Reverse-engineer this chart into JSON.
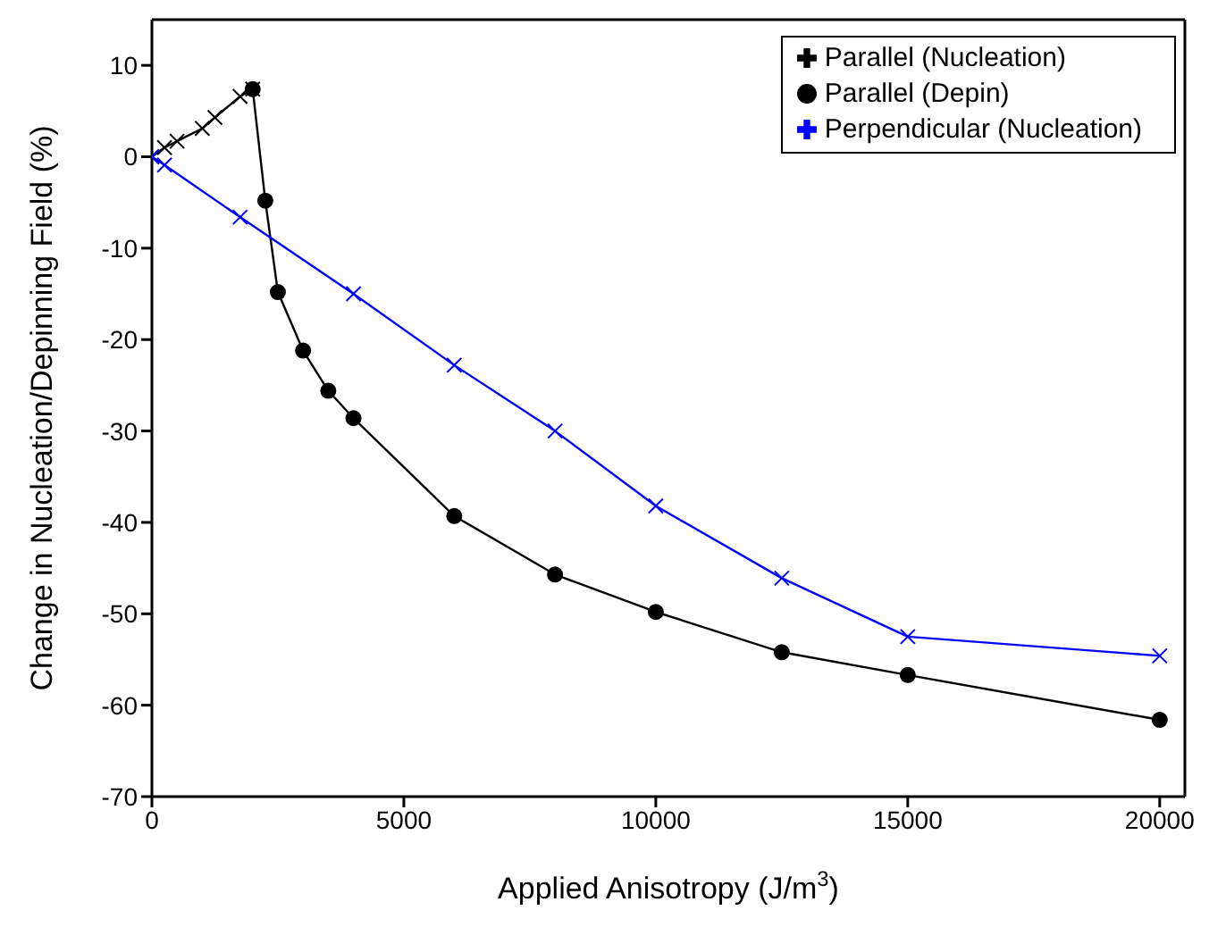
{
  "chart_data": {
    "type": "line",
    "xlabel": "Applied Anisotropy (J/m$^{3}$)",
    "ylabel": "Change in Nucleation/Depinning Field (%)",
    "xlim": [
      0,
      20500
    ],
    "xticks": [
      0,
      5000,
      10000,
      15000,
      20000
    ],
    "ylim": [
      -70,
      15
    ],
    "yticks": [
      -70,
      -60,
      -50,
      -40,
      -30,
      -20,
      -10,
      0,
      10
    ],
    "grid": false,
    "legend": "top right",
    "line_style": "solid",
    "series": [
      {
        "name": "Parallel (Nucleation)",
        "color": "#000000",
        "marker": "cross",
        "x": [
          0,
          250,
          500,
          1000,
          1250,
          1750,
          2000
        ],
        "values": [
          0,
          1.0,
          1.7,
          3.1,
          4.3,
          6.6,
          7.4
        ]
      },
      {
        "name": "Parallel (Depin)",
        "color": "#000000",
        "marker": "circle",
        "x": [
          2000,
          2250,
          2500,
          3000,
          3500,
          4000,
          6000,
          8000,
          10000,
          12500,
          15000,
          20000
        ],
        "values": [
          7.4,
          -4.8,
          -14.8,
          -21.2,
          -25.6,
          -28.6,
          -39.3,
          -45.7,
          -49.8,
          -54.2,
          -56.7,
          -61.6
        ]
      },
      {
        "name": "Perpendicular (Nucleation)",
        "color": "#0000ff",
        "marker": "cross",
        "x": [
          0,
          250,
          1750,
          4000,
          6000,
          8000,
          10000,
          12500,
          15000,
          20000
        ],
        "values": [
          0,
          -0.9,
          -6.6,
          -15.0,
          -22.8,
          -30.0,
          -38.2,
          -46.1,
          -52.5,
          -54.6
        ]
      }
    ]
  }
}
